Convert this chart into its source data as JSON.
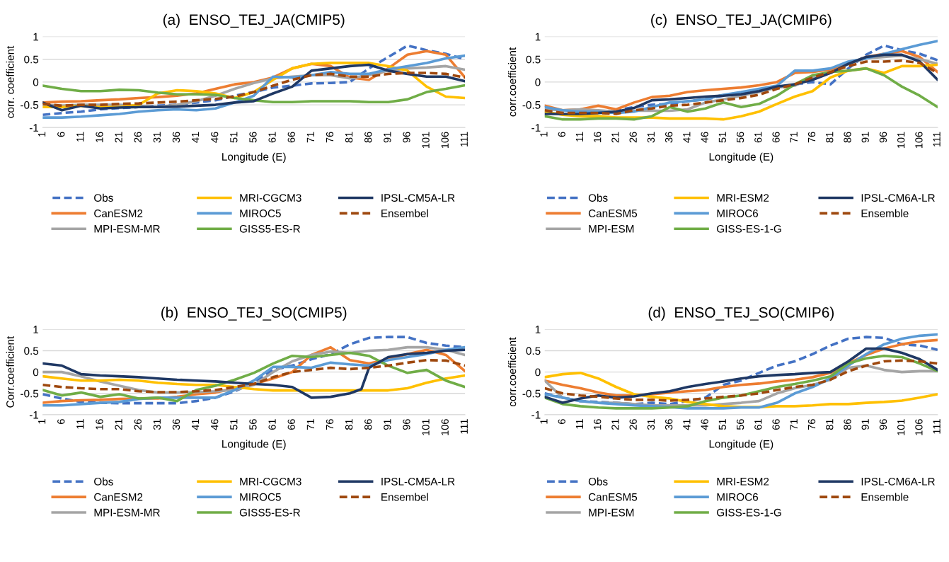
{
  "chart_data": [
    {
      "type": "line",
      "title": "(a)  ENSO_TEJ_JA(CMIP5)",
      "xlabel": "Longitude (E)",
      "ylabel": "corr. coefficient",
      "x": [
        1,
        6,
        11,
        16,
        21,
        26,
        31,
        36,
        41,
        46,
        51,
        56,
        61,
        66,
        71,
        76,
        81,
        86,
        91,
        96,
        101,
        106,
        111
      ],
      "xlim": [
        1,
        111
      ],
      "xticks": [
        1,
        6,
        11,
        16,
        21,
        26,
        31,
        36,
        41,
        46,
        51,
        56,
        61,
        66,
        71,
        76,
        81,
        86,
        91,
        96,
        101,
        106,
        111
      ],
      "ylim": [
        -1,
        1
      ],
      "yticks": [
        -1,
        -0.5,
        0,
        0.5,
        1
      ],
      "grid": "y",
      "legend": "bottom",
      "marker": "none",
      "series": [
        {
          "name": "Obs",
          "color": "#4472c4",
          "line_style": "dashed",
          "values": [
            -0.72,
            -0.68,
            -0.65,
            -0.6,
            -0.57,
            -0.55,
            -0.52,
            -0.5,
            -0.45,
            -0.4,
            -0.3,
            -0.22,
            -0.12,
            -0.08,
            -0.03,
            -0.02,
            0.0,
            0.3,
            0.55,
            0.8,
            0.7,
            0.62,
            0.5
          ]
        },
        {
          "name": "CanESM2",
          "color": "#ed7d31",
          "line_style": "solid",
          "values": [
            -0.45,
            -0.43,
            -0.42,
            -0.4,
            -0.38,
            -0.35,
            -0.33,
            -0.3,
            -0.25,
            -0.15,
            -0.05,
            0.0,
            0.1,
            0.3,
            0.4,
            0.35,
            0.1,
            0.05,
            0.3,
            0.6,
            0.68,
            0.6,
            0.1
          ]
        },
        {
          "name": "MPI-ESM-MR",
          "color": "#a5a5a5",
          "line_style": "solid",
          "values": [
            -0.5,
            -0.52,
            -0.5,
            -0.5,
            -0.5,
            -0.52,
            -0.55,
            -0.5,
            -0.42,
            -0.3,
            -0.15,
            -0.02,
            0.08,
            0.12,
            0.15,
            0.15,
            0.08,
            0.15,
            0.25,
            0.3,
            0.32,
            0.35,
            0.27
          ]
        },
        {
          "name": "MRI-CGCM3",
          "color": "#ffc000",
          "line_style": "solid",
          "values": [
            -0.55,
            -0.55,
            -0.52,
            -0.55,
            -0.55,
            -0.5,
            -0.25,
            -0.18,
            -0.2,
            -0.25,
            -0.35,
            -0.22,
            0.05,
            0.3,
            0.4,
            0.42,
            0.42,
            0.42,
            0.35,
            0.25,
            -0.1,
            -0.32,
            -0.35
          ]
        },
        {
          "name": "MIROC5",
          "color": "#5b9bd5",
          "line_style": "solid",
          "values": [
            -0.78,
            -0.78,
            -0.76,
            -0.73,
            -0.7,
            -0.65,
            -0.62,
            -0.6,
            -0.62,
            -0.58,
            -0.45,
            -0.3,
            0.12,
            0.1,
            0.15,
            0.22,
            0.18,
            0.18,
            0.28,
            0.35,
            0.42,
            0.52,
            0.58
          ]
        },
        {
          "name": "GISS5-ES-R",
          "color": "#70ad47",
          "line_style": "solid",
          "values": [
            -0.08,
            -0.15,
            -0.2,
            -0.2,
            -0.17,
            -0.18,
            -0.23,
            -0.27,
            -0.27,
            -0.28,
            -0.35,
            -0.4,
            -0.44,
            -0.44,
            -0.42,
            -0.42,
            -0.42,
            -0.44,
            -0.44,
            -0.38,
            -0.22,
            -0.15,
            -0.07
          ]
        },
        {
          "name": "IPSL-CM5A-LR",
          "color": "#1f3864",
          "line_style": "solid",
          "values": [
            -0.45,
            -0.62,
            -0.52,
            -0.58,
            -0.56,
            -0.55,
            -0.55,
            -0.54,
            -0.52,
            -0.5,
            -0.45,
            -0.42,
            -0.25,
            -0.1,
            0.25,
            0.3,
            0.35,
            0.38,
            0.25,
            0.18,
            0.12,
            0.12,
            0.02
          ]
        },
        {
          "name": "Ensembel",
          "color": "#9e480e",
          "line_style": "dashed",
          "values": [
            -0.48,
            -0.52,
            -0.5,
            -0.5,
            -0.48,
            -0.47,
            -0.45,
            -0.43,
            -0.4,
            -0.37,
            -0.32,
            -0.22,
            -0.08,
            0.05,
            0.15,
            0.18,
            0.12,
            0.12,
            0.18,
            0.2,
            0.2,
            0.18,
            0.1
          ]
        }
      ]
    },
    {
      "type": "line",
      "title": "(c)  ENSO_TEJ_JA(CMIP6)",
      "xlabel": "Longitude (E)",
      "ylabel": "corr.coefficient",
      "x": [
        1,
        6,
        11,
        16,
        21,
        26,
        31,
        36,
        41,
        46,
        51,
        56,
        61,
        66,
        71,
        76,
        81,
        86,
        91,
        96,
        101,
        106,
        111
      ],
      "xlim": [
        1,
        111
      ],
      "xticks": [
        1,
        6,
        11,
        16,
        21,
        26,
        31,
        36,
        41,
        46,
        51,
        56,
        61,
        66,
        71,
        76,
        81,
        86,
        91,
        96,
        101,
        106,
        111
      ],
      "ylim": [
        -1,
        1
      ],
      "yticks": [
        -1,
        -0.5,
        0,
        0.5,
        1
      ],
      "grid": "y",
      "legend": "bottom",
      "marker": "none",
      "series": [
        {
          "name": "Obs",
          "color": "#4472c4",
          "line_style": "dashed",
          "values": [
            -0.65,
            -0.68,
            -0.68,
            -0.65,
            -0.62,
            -0.55,
            -0.5,
            -0.48,
            -0.42,
            -0.38,
            -0.3,
            -0.25,
            -0.18,
            -0.12,
            -0.05,
            0.0,
            -0.05,
            0.3,
            0.6,
            0.8,
            0.7,
            0.62,
            0.48
          ]
        },
        {
          "name": "CanESM5",
          "color": "#ed7d31",
          "line_style": "solid",
          "values": [
            -0.52,
            -0.62,
            -0.6,
            -0.52,
            -0.6,
            -0.45,
            -0.33,
            -0.3,
            -0.22,
            -0.18,
            -0.15,
            -0.12,
            -0.07,
            0.0,
            0.2,
            0.22,
            0.28,
            0.4,
            0.55,
            0.62,
            0.68,
            0.55,
            0.22
          ]
        },
        {
          "name": "MPI-ESM",
          "color": "#a5a5a5",
          "line_style": "solid",
          "values": [
            -0.6,
            -0.62,
            -0.6,
            -0.62,
            -0.65,
            -0.63,
            -0.63,
            -0.63,
            -0.6,
            -0.45,
            -0.38,
            -0.3,
            -0.22,
            -0.12,
            -0.08,
            0.1,
            0.2,
            0.4,
            0.52,
            0.55,
            0.58,
            0.5,
            0.4
          ]
        },
        {
          "name": "MRI-ESM2",
          "color": "#ffc000",
          "line_style": "solid",
          "values": [
            -0.65,
            -0.72,
            -0.75,
            -0.75,
            -0.78,
            -0.78,
            -0.78,
            -0.8,
            -0.8,
            -0.8,
            -0.82,
            -0.75,
            -0.65,
            -0.48,
            -0.32,
            -0.2,
            0.1,
            0.25,
            0.3,
            0.2,
            0.35,
            0.35,
            0.38
          ]
        },
        {
          "name": "MIROC6",
          "color": "#5b9bd5",
          "line_style": "solid",
          "values": [
            -0.55,
            -0.62,
            -0.65,
            -0.65,
            -0.68,
            -0.65,
            -0.55,
            -0.45,
            -0.42,
            -0.38,
            -0.28,
            -0.22,
            -0.15,
            -0.08,
            0.25,
            0.25,
            0.3,
            0.45,
            0.52,
            0.62,
            0.72,
            0.82,
            0.9
          ]
        },
        {
          "name": "GISS-ES-1-G",
          "color": "#70ad47",
          "line_style": "solid",
          "values": [
            -0.75,
            -0.82,
            -0.82,
            -0.8,
            -0.8,
            -0.82,
            -0.75,
            -0.55,
            -0.65,
            -0.58,
            -0.45,
            -0.55,
            -0.48,
            -0.3,
            -0.05,
            0.15,
            0.22,
            0.25,
            0.3,
            0.15,
            -0.1,
            -0.3,
            -0.55
          ]
        },
        {
          "name": "IPSL-CM6A-LR",
          "color": "#1f3864",
          "line_style": "solid",
          "values": [
            -0.7,
            -0.7,
            -0.7,
            -0.68,
            -0.65,
            -0.57,
            -0.4,
            -0.38,
            -0.35,
            -0.32,
            -0.3,
            -0.27,
            -0.2,
            -0.1,
            -0.05,
            0.05,
            0.2,
            0.4,
            0.55,
            0.6,
            0.6,
            0.45,
            0.05
          ]
        },
        {
          "name": "Ensemble",
          "color": "#9e480e",
          "line_style": "dashed",
          "values": [
            -0.62,
            -0.68,
            -0.68,
            -0.68,
            -0.7,
            -0.62,
            -0.58,
            -0.52,
            -0.5,
            -0.45,
            -0.4,
            -0.35,
            -0.28,
            -0.15,
            -0.05,
            0.1,
            0.22,
            0.35,
            0.45,
            0.45,
            0.47,
            0.42,
            0.2
          ]
        }
      ]
    },
    {
      "type": "line",
      "title": "(b)  ENSO_TEJ_SO(CMIP5)",
      "xlabel": "Longitude (E)",
      "ylabel": "Corr.coefficient",
      "x": [
        1,
        6,
        11,
        16,
        21,
        26,
        31,
        36,
        41,
        46,
        51,
        56,
        61,
        66,
        71,
        76,
        81,
        86,
        91,
        96,
        101,
        106,
        111
      ],
      "xlim": [
        1,
        111
      ],
      "xticks": [
        1,
        6,
        11,
        16,
        21,
        26,
        31,
        36,
        41,
        46,
        51,
        56,
        61,
        66,
        71,
        76,
        81,
        86,
        91,
        96,
        101,
        106,
        111
      ],
      "ylim": [
        -1,
        1
      ],
      "yticks": [
        -1,
        -0.5,
        0,
        0.5,
        1
      ],
      "grid": "y",
      "legend": "bottom",
      "marker": "none",
      "series": [
        {
          "name": "Obs",
          "color": "#4472c4",
          "line_style": "dashed",
          "values": [
            -0.52,
            -0.62,
            -0.7,
            -0.72,
            -0.73,
            -0.73,
            -0.73,
            -0.73,
            -0.68,
            -0.6,
            -0.45,
            -0.25,
            0.05,
            0.15,
            0.3,
            0.42,
            0.65,
            0.8,
            0.82,
            0.82,
            0.68,
            0.62,
            0.58
          ]
        },
        {
          "name": "CanESM2",
          "color": "#ed7d31",
          "line_style": "solid",
          "values": [
            -0.72,
            -0.68,
            -0.66,
            -0.65,
            -0.63,
            -0.62,
            -0.62,
            -0.58,
            -0.52,
            -0.48,
            -0.38,
            -0.28,
            -0.15,
            0.0,
            0.4,
            0.58,
            0.28,
            0.2,
            0.3,
            0.42,
            0.52,
            0.4,
            0.02
          ]
        },
        {
          "name": "MPI-ESM-MR",
          "color": "#a5a5a5",
          "line_style": "solid",
          "values": [
            0.0,
            0.0,
            -0.1,
            -0.22,
            -0.32,
            -0.42,
            -0.48,
            -0.48,
            -0.47,
            -0.45,
            -0.42,
            -0.3,
            0.0,
            0.25,
            0.4,
            0.48,
            0.45,
            0.5,
            0.52,
            0.58,
            0.58,
            0.52,
            0.4
          ]
        },
        {
          "name": "MRI-CGCM3",
          "color": "#ffc000",
          "line_style": "solid",
          "values": [
            -0.1,
            -0.15,
            -0.2,
            -0.2,
            -0.18,
            -0.2,
            -0.25,
            -0.28,
            -0.3,
            -0.3,
            -0.35,
            -0.4,
            -0.43,
            -0.43,
            -0.43,
            -0.43,
            -0.43,
            -0.43,
            -0.43,
            -0.38,
            -0.25,
            -0.15,
            -0.08
          ]
        },
        {
          "name": "MIROC5",
          "color": "#5b9bd5",
          "line_style": "solid",
          "values": [
            -0.78,
            -0.78,
            -0.75,
            -0.72,
            -0.7,
            -0.63,
            -0.6,
            -0.6,
            -0.6,
            -0.6,
            -0.42,
            -0.2,
            0.12,
            0.12,
            0.1,
            0.22,
            0.18,
            0.15,
            0.28,
            0.35,
            0.42,
            0.52,
            0.58
          ]
        },
        {
          "name": "GISS5-ES-R",
          "color": "#70ad47",
          "line_style": "solid",
          "values": [
            -0.42,
            -0.55,
            -0.48,
            -0.58,
            -0.52,
            -0.62,
            -0.6,
            -0.68,
            -0.42,
            -0.32,
            -0.18,
            -0.02,
            0.2,
            0.38,
            0.35,
            0.4,
            0.45,
            0.38,
            0.15,
            -0.02,
            0.05,
            -0.2,
            -0.35
          ]
        },
        {
          "name": "IPSL-CM5A-LR",
          "color": "#1f3864",
          "line_style": "solid",
          "x": [
            1,
            6,
            11,
            16,
            21,
            26,
            31,
            36,
            41,
            46,
            51,
            56,
            61,
            66,
            71,
            76,
            81,
            84,
            86,
            91,
            96,
            101,
            106,
            111
          ],
          "values": [
            0.2,
            0.15,
            -0.05,
            -0.08,
            -0.1,
            -0.12,
            -0.15,
            -0.18,
            -0.2,
            -0.22,
            -0.25,
            -0.28,
            -0.3,
            -0.35,
            -0.6,
            -0.58,
            -0.5,
            -0.4,
            0.1,
            0.35,
            0.42,
            0.45,
            0.5,
            0.52
          ]
        },
        {
          "name": "Ensembel",
          "color": "#9e480e",
          "line_style": "dashed",
          "values": [
            -0.3,
            -0.35,
            -0.38,
            -0.4,
            -0.4,
            -0.45,
            -0.47,
            -0.47,
            -0.45,
            -0.42,
            -0.35,
            -0.28,
            -0.12,
            0.0,
            0.05,
            0.1,
            0.07,
            0.1,
            0.15,
            0.22,
            0.28,
            0.27,
            0.15
          ]
        }
      ]
    },
    {
      "type": "line",
      "title": "(d)  ENSO_TEJ_SO(CMIP6)",
      "xlabel": "Longitude (E)",
      "ylabel": "corr.coefficient",
      "x": [
        1,
        6,
        11,
        16,
        21,
        26,
        31,
        36,
        41,
        46,
        51,
        56,
        61,
        66,
        71,
        76,
        81,
        86,
        91,
        96,
        101,
        106,
        111
      ],
      "xlim": [
        1,
        111
      ],
      "xticks": [
        1,
        6,
        11,
        16,
        21,
        26,
        31,
        36,
        41,
        46,
        51,
        56,
        61,
        66,
        71,
        76,
        81,
        86,
        91,
        96,
        101,
        106,
        111
      ],
      "ylim": [
        -1,
        1
      ],
      "yticks": [
        -1,
        -0.5,
        0,
        0.5,
        1
      ],
      "grid": "y",
      "legend": "bottom",
      "marker": "none",
      "series": [
        {
          "name": "Obs",
          "color": "#4472c4",
          "line_style": "dashed",
          "values": [
            -0.5,
            -0.6,
            -0.68,
            -0.7,
            -0.72,
            -0.75,
            -0.72,
            -0.75,
            -0.68,
            -0.6,
            -0.3,
            -0.2,
            -0.02,
            0.15,
            0.25,
            0.42,
            0.62,
            0.78,
            0.82,
            0.8,
            0.65,
            0.62,
            0.52
          ]
        },
        {
          "name": "CanESM5",
          "color": "#ed7d31",
          "line_style": "solid",
          "values": [
            -0.2,
            -0.3,
            -0.38,
            -0.48,
            -0.55,
            -0.55,
            -0.52,
            -0.48,
            -0.45,
            -0.42,
            -0.35,
            -0.3,
            -0.27,
            -0.22,
            -0.18,
            -0.12,
            -0.02,
            0.2,
            0.4,
            0.55,
            0.65,
            0.72,
            0.75
          ]
        },
        {
          "name": "MPI-ESM",
          "color": "#a5a5a5",
          "line_style": "solid",
          "values": [
            -0.2,
            -0.6,
            -0.68,
            -0.72,
            -0.72,
            -0.75,
            -0.78,
            -0.78,
            -0.78,
            -0.78,
            -0.75,
            -0.72,
            -0.68,
            -0.5,
            -0.38,
            -0.3,
            -0.18,
            0.1,
            0.15,
            0.05,
            0.0,
            0.02,
            0.02
          ]
        },
        {
          "name": "MRI-ESM2",
          "color": "#ffc000",
          "line_style": "solid",
          "values": [
            -0.12,
            -0.05,
            -0.02,
            -0.15,
            -0.35,
            -0.52,
            -0.58,
            -0.62,
            -0.7,
            -0.75,
            -0.8,
            -0.82,
            -0.82,
            -0.8,
            -0.8,
            -0.78,
            -0.75,
            -0.75,
            -0.72,
            -0.7,
            -0.67,
            -0.6,
            -0.52
          ]
        },
        {
          "name": "MIROC6",
          "color": "#5b9bd5",
          "line_style": "solid",
          "values": [
            -0.52,
            -0.6,
            -0.68,
            -0.72,
            -0.75,
            -0.78,
            -0.8,
            -0.82,
            -0.85,
            -0.85,
            -0.85,
            -0.83,
            -0.83,
            -0.72,
            -0.5,
            -0.35,
            -0.15,
            0.15,
            0.42,
            0.65,
            0.78,
            0.85,
            0.88
          ]
        },
        {
          "name": "GISS-ES-1-G",
          "color": "#70ad47",
          "line_style": "solid",
          "values": [
            -0.6,
            -0.75,
            -0.8,
            -0.83,
            -0.85,
            -0.85,
            -0.85,
            -0.83,
            -0.8,
            -0.68,
            -0.6,
            -0.55,
            -0.45,
            -0.35,
            -0.28,
            -0.2,
            -0.1,
            0.2,
            0.32,
            0.38,
            0.35,
            0.2,
            0.02
          ]
        },
        {
          "name": "IPSL-CM6A-LR",
          "color": "#1f3864",
          "line_style": "solid",
          "values": [
            -0.58,
            -0.72,
            -0.62,
            -0.55,
            -0.6,
            -0.57,
            -0.5,
            -0.45,
            -0.35,
            -0.28,
            -0.22,
            -0.15,
            -0.1,
            -0.07,
            -0.05,
            -0.02,
            0.0,
            0.25,
            0.55,
            0.55,
            0.45,
            0.3,
            0.05
          ]
        },
        {
          "name": "Ensemble",
          "color": "#9e480e",
          "line_style": "dashed",
          "values": [
            -0.38,
            -0.5,
            -0.55,
            -0.58,
            -0.62,
            -0.65,
            -0.65,
            -0.67,
            -0.65,
            -0.62,
            -0.58,
            -0.55,
            -0.5,
            -0.42,
            -0.35,
            -0.3,
            -0.18,
            0.02,
            0.15,
            0.25,
            0.27,
            0.25,
            0.2
          ]
        }
      ]
    }
  ]
}
